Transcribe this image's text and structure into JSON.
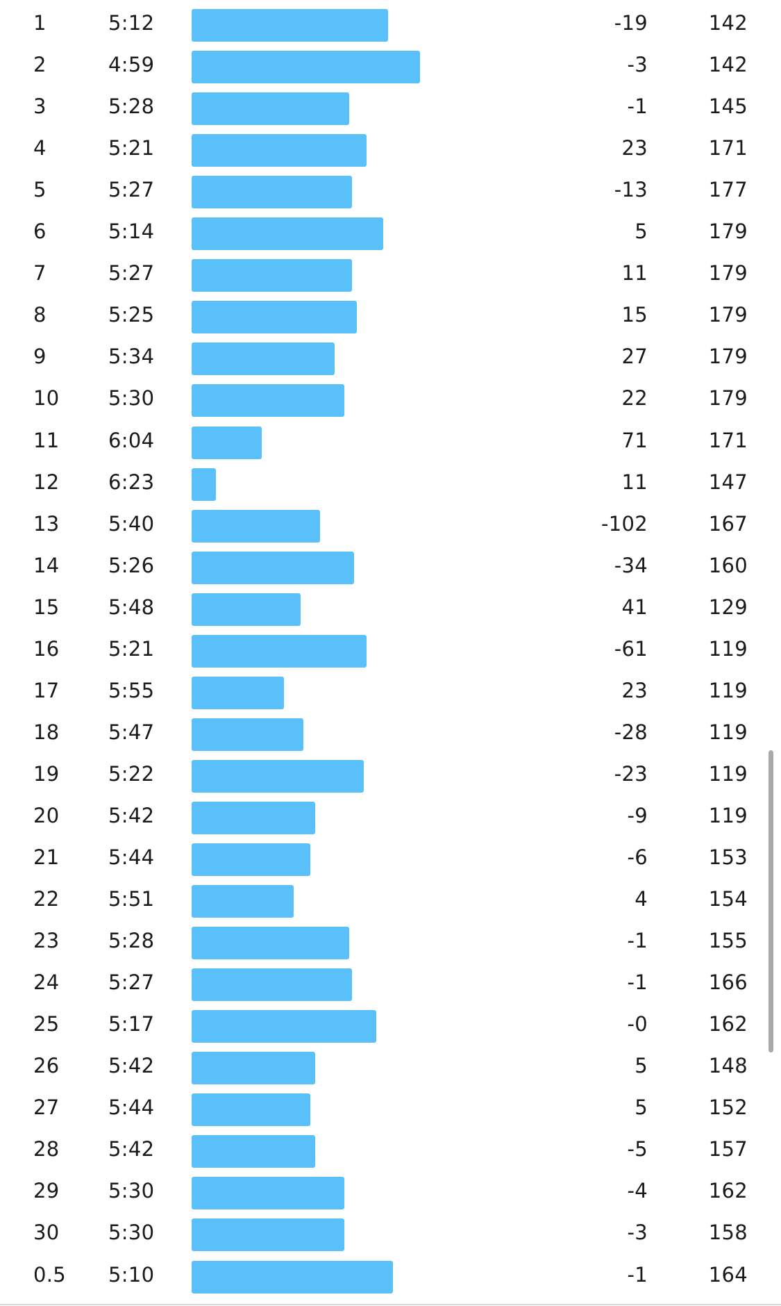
{
  "theme": {
    "bar_color": "#5ac0fa",
    "text_color": "#1a1a1a",
    "divider_color": "#d6d6d6",
    "scrollbar_color": "#a9a9a9"
  },
  "splits": [
    {
      "km": "1",
      "pace": "5:12",
      "elev": "-19",
      "hr": "142"
    },
    {
      "km": "2",
      "pace": "4:59",
      "elev": "-3",
      "hr": "142"
    },
    {
      "km": "3",
      "pace": "5:28",
      "elev": "-1",
      "hr": "145"
    },
    {
      "km": "4",
      "pace": "5:21",
      "elev": "23",
      "hr": "171"
    },
    {
      "km": "5",
      "pace": "5:27",
      "elev": "-13",
      "hr": "177"
    },
    {
      "km": "6",
      "pace": "5:14",
      "elev": "5",
      "hr": "179"
    },
    {
      "km": "7",
      "pace": "5:27",
      "elev": "11",
      "hr": "179"
    },
    {
      "km": "8",
      "pace": "5:25",
      "elev": "15",
      "hr": "179"
    },
    {
      "km": "9",
      "pace": "5:34",
      "elev": "27",
      "hr": "179"
    },
    {
      "km": "10",
      "pace": "5:30",
      "elev": "22",
      "hr": "179"
    },
    {
      "km": "11",
      "pace": "6:04",
      "elev": "71",
      "hr": "171"
    },
    {
      "km": "12",
      "pace": "6:23",
      "elev": "11",
      "hr": "147"
    },
    {
      "km": "13",
      "pace": "5:40",
      "elev": "-102",
      "hr": "167"
    },
    {
      "km": "14",
      "pace": "5:26",
      "elev": "-34",
      "hr": "160"
    },
    {
      "km": "15",
      "pace": "5:48",
      "elev": "41",
      "hr": "129"
    },
    {
      "km": "16",
      "pace": "5:21",
      "elev": "-61",
      "hr": "119"
    },
    {
      "km": "17",
      "pace": "5:55",
      "elev": "23",
      "hr": "119"
    },
    {
      "km": "18",
      "pace": "5:47",
      "elev": "-28",
      "hr": "119"
    },
    {
      "km": "19",
      "pace": "5:22",
      "elev": "-23",
      "hr": "119"
    },
    {
      "km": "20",
      "pace": "5:42",
      "elev": "-9",
      "hr": "119"
    },
    {
      "km": "21",
      "pace": "5:44",
      "elev": "-6",
      "hr": "153"
    },
    {
      "km": "22",
      "pace": "5:51",
      "elev": "4",
      "hr": "154"
    },
    {
      "km": "23",
      "pace": "5:28",
      "elev": "-1",
      "hr": "155"
    },
    {
      "km": "24",
      "pace": "5:27",
      "elev": "-1",
      "hr": "166"
    },
    {
      "km": "25",
      "pace": "5:17",
      "elev": "-0",
      "hr": "162"
    },
    {
      "km": "26",
      "pace": "5:42",
      "elev": "5",
      "hr": "148"
    },
    {
      "km": "27",
      "pace": "5:44",
      "elev": "5",
      "hr": "152"
    },
    {
      "km": "28",
      "pace": "5:42",
      "elev": "-5",
      "hr": "157"
    },
    {
      "km": "29",
      "pace": "5:30",
      "elev": "-4",
      "hr": "162"
    },
    {
      "km": "30",
      "pace": "5:30",
      "elev": "-3",
      "hr": "158"
    },
    {
      "km": "0.5",
      "pace": "5:10",
      "elev": "-1",
      "hr": "164"
    }
  ]
}
